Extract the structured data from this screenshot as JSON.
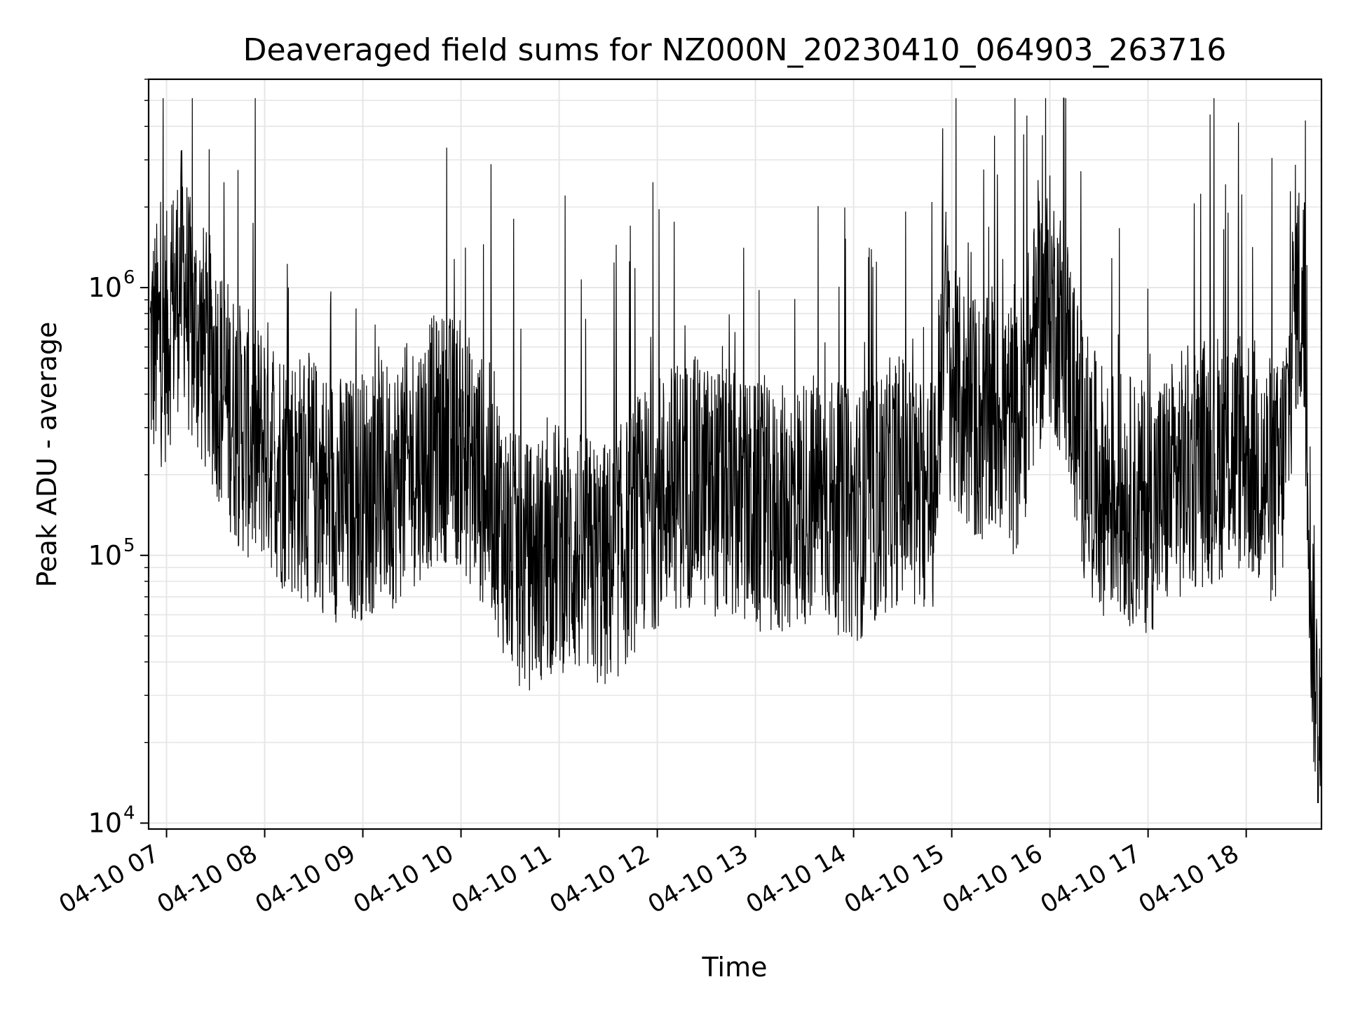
{
  "chart_data": {
    "type": "line",
    "title": "Deaveraged field sums for NZ000N_20230410_064903_263716",
    "xlabel": "Time",
    "ylabel": "Peak ADU - average",
    "yscale": "log",
    "ylim": [
      9500,
      6000000
    ],
    "xlim": [
      "2023-04-10 06:49:03",
      "2023-04-10 18:46:00"
    ],
    "grid": true,
    "line_color": "#000000",
    "grid_color": "#e6e6e6",
    "x_ticks": [
      "04-10 07",
      "04-10 08",
      "04-10 09",
      "04-10 10",
      "04-10 11",
      "04-10 12",
      "04-10 13",
      "04-10 14",
      "04-10 15",
      "04-10 16",
      "04-10 17",
      "04-10 18"
    ],
    "x_tick_times": [
      "2023-04-10 07:00",
      "2023-04-10 08:00",
      "2023-04-10 09:00",
      "2023-04-10 10:00",
      "2023-04-10 11:00",
      "2023-04-10 12:00",
      "2023-04-10 13:00",
      "2023-04-10 14:00",
      "2023-04-10 15:00",
      "2023-04-10 16:00",
      "2023-04-10 17:00",
      "2023-04-10 18:00"
    ],
    "y_ticks": [
      {
        "value": 10000,
        "base": "10",
        "exp": "4"
      },
      {
        "value": 100000,
        "base": "10",
        "exp": "5"
      },
      {
        "value": 1000000,
        "base": "10",
        "exp": "6"
      }
    ],
    "series": [
      {
        "points": [
          [
            "2023-04-10 06:50",
            600000
          ],
          [
            "2023-04-10 06:55",
            620000
          ],
          [
            "2023-04-10 07:00",
            650000
          ],
          [
            "2023-04-10 07:05",
            900000
          ],
          [
            "2023-04-10 07:10",
            1200000
          ],
          [
            "2023-04-10 07:15",
            700000
          ],
          [
            "2023-04-10 07:20",
            650000
          ],
          [
            "2023-04-10 07:25",
            550000
          ],
          [
            "2023-04-10 07:30",
            500000
          ],
          [
            "2023-04-10 07:35",
            400000
          ],
          [
            "2023-04-10 07:40",
            350000
          ],
          [
            "2023-04-10 07:45",
            300000
          ],
          [
            "2023-04-10 07:50",
            280000
          ],
          [
            "2023-04-10 07:55",
            250000
          ],
          [
            "2023-04-10 08:00",
            280000
          ],
          [
            "2023-04-10 08:10",
            220000
          ],
          [
            "2023-04-10 08:20",
            200000
          ],
          [
            "2023-04-10 08:30",
            190000
          ],
          [
            "2023-04-10 08:40",
            170000
          ],
          [
            "2023-04-10 08:50",
            160000
          ],
          [
            "2023-04-10 09:00",
            170000
          ],
          [
            "2023-04-10 09:10",
            180000
          ],
          [
            "2023-04-10 09:20",
            190000
          ],
          [
            "2023-04-10 09:30",
            220000
          ],
          [
            "2023-04-10 09:40",
            260000
          ],
          [
            "2023-04-10 09:50",
            280000
          ],
          [
            "2023-04-10 10:00",
            260000
          ],
          [
            "2023-04-10 10:10",
            200000
          ],
          [
            "2023-04-10 10:20",
            170000
          ],
          [
            "2023-04-10 10:30",
            100000
          ],
          [
            "2023-04-10 10:40",
            90000
          ],
          [
            "2023-04-10 10:50",
            100000
          ],
          [
            "2023-04-10 11:00",
            110000
          ],
          [
            "2023-04-10 11:10",
            100000
          ],
          [
            "2023-04-10 11:20",
            95000
          ],
          [
            "2023-04-10 11:30",
            90000
          ],
          [
            "2023-04-10 11:40",
            110000
          ],
          [
            "2023-04-10 11:50",
            140000
          ],
          [
            "2023-04-10 12:00",
            160000
          ],
          [
            "2023-04-10 12:10",
            180000
          ],
          [
            "2023-04-10 12:20",
            190000
          ],
          [
            "2023-04-10 12:30",
            180000
          ],
          [
            "2023-04-10 12:40",
            170000
          ],
          [
            "2023-04-10 12:50",
            160000
          ],
          [
            "2023-04-10 13:00",
            150000
          ],
          [
            "2023-04-10 13:10",
            140000
          ],
          [
            "2023-04-10 13:20",
            150000
          ],
          [
            "2023-04-10 13:30",
            160000
          ],
          [
            "2023-04-10 13:40",
            170000
          ],
          [
            "2023-04-10 13:50",
            150000
          ],
          [
            "2023-04-10 14:00",
            140000
          ],
          [
            "2023-04-10 14:10",
            150000
          ],
          [
            "2023-04-10 14:20",
            180000
          ],
          [
            "2023-04-10 14:30",
            200000
          ],
          [
            "2023-04-10 14:40",
            160000
          ],
          [
            "2023-04-10 14:50",
            180000
          ],
          [
            "2023-04-10 14:55",
            900000
          ],
          [
            "2023-04-10 15:00",
            400000
          ],
          [
            "2023-04-10 15:10",
            350000
          ],
          [
            "2023-04-10 15:20",
            300000
          ],
          [
            "2023-04-10 15:30",
            350000
          ],
          [
            "2023-04-10 15:40",
            280000
          ],
          [
            "2023-04-10 15:50",
            600000
          ],
          [
            "2023-04-10 16:00",
            900000
          ],
          [
            "2023-04-10 16:10",
            600000
          ],
          [
            "2023-04-10 16:20",
            250000
          ],
          [
            "2023-04-10 16:30",
            180000
          ],
          [
            "2023-04-10 16:40",
            170000
          ],
          [
            "2023-04-10 16:50",
            160000
          ],
          [
            "2023-04-10 17:00",
            150000
          ],
          [
            "2023-04-10 17:10",
            170000
          ],
          [
            "2023-04-10 17:20",
            200000
          ],
          [
            "2023-04-10 17:30",
            220000
          ],
          [
            "2023-04-10 17:40",
            230000
          ],
          [
            "2023-04-10 17:50",
            250000
          ],
          [
            "2023-04-10 18:00",
            250000
          ],
          [
            "2023-04-10 18:10",
            200000
          ],
          [
            "2023-04-10 18:20",
            180000
          ],
          [
            "2023-04-10 18:25",
            300000
          ],
          [
            "2023-04-10 18:30",
            1000000
          ],
          [
            "2023-04-10 18:35",
            800000
          ],
          [
            "2023-04-10 18:38",
            200000
          ],
          [
            "2023-04-10 18:40",
            60000
          ],
          [
            "2023-04-10 18:42",
            40000
          ],
          [
            "2023-04-10 18:44",
            20000
          ],
          [
            "2023-04-10 18:46",
            15000
          ]
        ]
      }
    ]
  }
}
